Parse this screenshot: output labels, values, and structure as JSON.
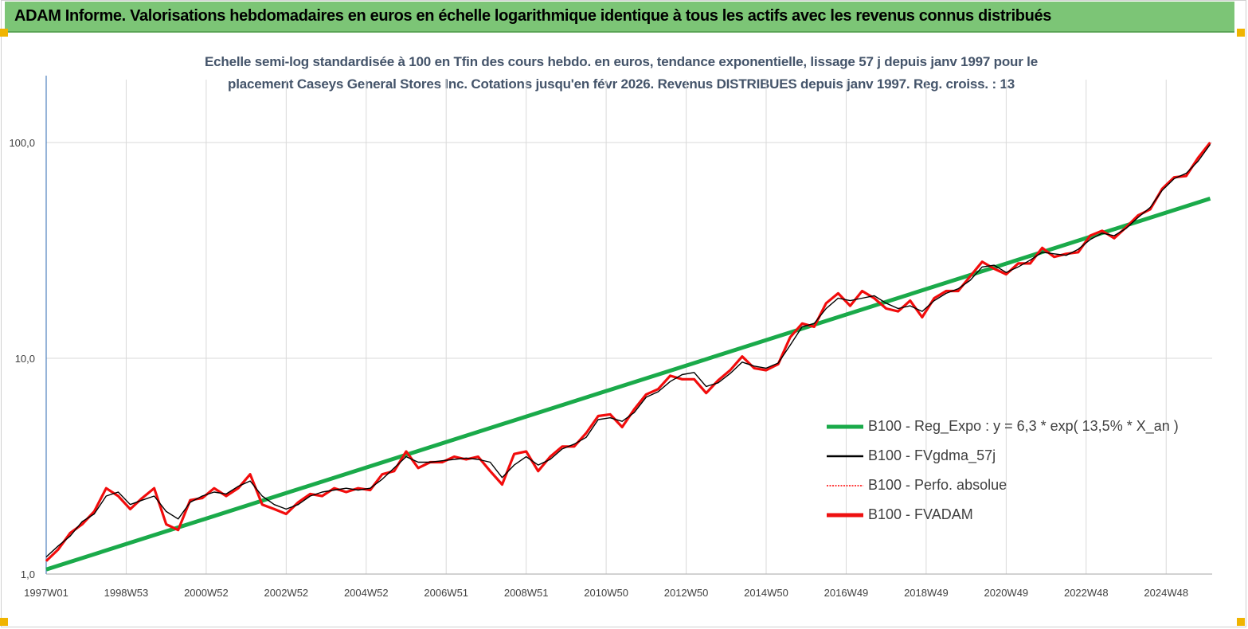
{
  "header": {
    "title": "ADAM Informe. Valorisations hebdomadaires en euros en échelle logarithmique identique à tous les actifs avec les revenus connus distribués"
  },
  "chart_data": {
    "type": "line",
    "title_line1": "Echelle semi-log standardisée à 100 en Tfin des cours hebdo. en euros, tendance exponentielle, lissage 57 j depuis janv 1997 pour le",
    "title_line2": "placement Caseys General Stores Inc.  Cotations jusqu'en févr 2026. Revenus DISTRIBUES depuis janv 1997. Reg. croiss. : 13",
    "xlabel": "",
    "ylabel": "",
    "y_scale": "log",
    "ylim": [
      1,
      200
    ],
    "xlim": [
      1997.0,
      2026.15
    ],
    "y_ticks": [
      {
        "value": 1,
        "label": "1,0"
      },
      {
        "value": 10,
        "label": "10,0"
      },
      {
        "value": 100,
        "label": "100,0"
      }
    ],
    "x_ticks": [
      {
        "value": 1997.0,
        "label": "1997W01"
      },
      {
        "value": 1999.0,
        "label": "1998W53"
      },
      {
        "value": 2001.0,
        "label": "2000W52"
      },
      {
        "value": 2003.0,
        "label": "2002W52"
      },
      {
        "value": 2005.0,
        "label": "2004W52"
      },
      {
        "value": 2007.0,
        "label": "2006W51"
      },
      {
        "value": 2009.0,
        "label": "2008W51"
      },
      {
        "value": 2011.0,
        "label": "2010W50"
      },
      {
        "value": 2013.0,
        "label": "2012W50"
      },
      {
        "value": 2015.0,
        "label": "2014W50"
      },
      {
        "value": 2017.0,
        "label": "2016W49"
      },
      {
        "value": 2019.0,
        "label": "2018W49"
      },
      {
        "value": 2021.0,
        "label": "2020W49"
      },
      {
        "value": 2023.0,
        "label": "2022W48"
      },
      {
        "value": 2025.0,
        "label": "2024W48"
      }
    ],
    "grid": "vertical",
    "legend_position": "right",
    "colors": {
      "regression": "#1aaa4a",
      "smoothed": "#000000",
      "absolute": "#ff0000",
      "fvadam": "#ee1111",
      "axis": "#4f81bd",
      "grid": "#d9d9d9"
    },
    "series": [
      {
        "name": "B100 - Reg_Expo : y = 6,3 * exp( 13,5% *  X_an )",
        "style": "solid-thick",
        "x": [
          1997.0,
          2026.1
        ],
        "y": [
          1.05,
          55.0
        ]
      },
      {
        "name": "B100 - FVgdma_57j",
        "style": "solid-thin",
        "x": [
          1997.0,
          1997.3,
          1997.6,
          1997.9,
          1998.2,
          1998.5,
          1998.8,
          1999.1,
          1999.4,
          1999.7,
          2000.0,
          2000.3,
          2000.6,
          2000.9,
          2001.2,
          2001.5,
          2001.8,
          2002.1,
          2002.4,
          2002.7,
          2003.0,
          2003.3,
          2003.6,
          2003.9,
          2004.2,
          2004.5,
          2004.8,
          2005.1,
          2005.4,
          2005.7,
          2006.0,
          2006.3,
          2006.6,
          2006.9,
          2007.2,
          2007.5,
          2007.8,
          2008.1,
          2008.4,
          2008.7,
          2009.0,
          2009.3,
          2009.6,
          2009.9,
          2010.2,
          2010.5,
          2010.8,
          2011.1,
          2011.4,
          2011.7,
          2012.0,
          2012.3,
          2012.6,
          2012.9,
          2013.2,
          2013.5,
          2013.8,
          2014.1,
          2014.4,
          2014.7,
          2015.0,
          2015.3,
          2015.6,
          2015.9,
          2016.2,
          2016.5,
          2016.8,
          2017.1,
          2017.4,
          2017.7,
          2018.0,
          2018.3,
          2018.6,
          2018.9,
          2019.2,
          2019.5,
          2019.8,
          2020.1,
          2020.4,
          2020.7,
          2021.0,
          2021.3,
          2021.6,
          2021.9,
          2022.2,
          2022.5,
          2022.8,
          2023.1,
          2023.4,
          2023.7,
          2024.0,
          2024.3,
          2024.6,
          2024.9,
          2025.2,
          2025.5,
          2025.8,
          2026.1
        ],
        "y": [
          1.2,
          1.35,
          1.5,
          1.75,
          1.9,
          2.3,
          2.4,
          2.1,
          2.2,
          2.3,
          1.95,
          1.8,
          2.15,
          2.3,
          2.4,
          2.35,
          2.55,
          2.7,
          2.3,
          2.1,
          2.0,
          2.1,
          2.3,
          2.4,
          2.45,
          2.5,
          2.45,
          2.5,
          2.75,
          3.1,
          3.5,
          3.3,
          3.3,
          3.35,
          3.4,
          3.45,
          3.4,
          3.3,
          2.8,
          3.2,
          3.5,
          3.2,
          3.4,
          3.8,
          4.0,
          4.3,
          5.2,
          5.3,
          5.1,
          5.6,
          6.6,
          7.0,
          7.8,
          8.4,
          8.6,
          7.4,
          7.7,
          8.5,
          9.6,
          9.2,
          9.0,
          9.5,
          11.5,
          14.0,
          14.5,
          17.0,
          19.0,
          18.5,
          19.0,
          19.5,
          18.0,
          17.0,
          17.5,
          16.5,
          18.5,
          20.0,
          21.0,
          23.0,
          26.5,
          27.0,
          25.0,
          26.5,
          28.5,
          31.0,
          30.5,
          30.0,
          32.0,
          35.5,
          38.0,
          37.0,
          40.0,
          45.0,
          50.0,
          60.0,
          68.0,
          72.0,
          82.0,
          98.0
        ]
      },
      {
        "name": "B100 - Perfo. absolue",
        "style": "dotted"
      },
      {
        "name": "B100 - FVADAM",
        "style": "solid-thick",
        "x": [
          1997.0,
          1997.3,
          1997.6,
          1997.9,
          1998.2,
          1998.5,
          1998.8,
          1999.1,
          1999.4,
          1999.7,
          2000.0,
          2000.3,
          2000.6,
          2000.9,
          2001.2,
          2001.5,
          2001.8,
          2002.1,
          2002.4,
          2002.7,
          2003.0,
          2003.3,
          2003.6,
          2003.9,
          2004.2,
          2004.5,
          2004.8,
          2005.1,
          2005.4,
          2005.7,
          2006.0,
          2006.3,
          2006.6,
          2006.9,
          2007.2,
          2007.5,
          2007.8,
          2008.1,
          2008.4,
          2008.7,
          2009.0,
          2009.3,
          2009.6,
          2009.9,
          2010.2,
          2010.5,
          2010.8,
          2011.1,
          2011.4,
          2011.7,
          2012.0,
          2012.3,
          2012.6,
          2012.9,
          2013.2,
          2013.5,
          2013.8,
          2014.1,
          2014.4,
          2014.7,
          2015.0,
          2015.3,
          2015.6,
          2015.9,
          2016.2,
          2016.5,
          2016.8,
          2017.1,
          2017.4,
          2017.7,
          2018.0,
          2018.3,
          2018.6,
          2018.9,
          2019.2,
          2019.5,
          2019.8,
          2020.1,
          2020.4,
          2020.7,
          2021.0,
          2021.3,
          2021.6,
          2021.9,
          2022.2,
          2022.5,
          2022.8,
          2023.1,
          2023.4,
          2023.7,
          2024.0,
          2024.3,
          2024.6,
          2024.9,
          2025.2,
          2025.5,
          2025.8,
          2026.1
        ],
        "y": [
          1.15,
          1.3,
          1.55,
          1.7,
          1.95,
          2.5,
          2.3,
          2.0,
          2.25,
          2.5,
          1.7,
          1.6,
          2.2,
          2.25,
          2.5,
          2.3,
          2.5,
          2.9,
          2.1,
          2.0,
          1.9,
          2.15,
          2.35,
          2.3,
          2.5,
          2.4,
          2.5,
          2.45,
          2.9,
          3.0,
          3.7,
          3.1,
          3.3,
          3.3,
          3.5,
          3.4,
          3.5,
          3.0,
          2.6,
          3.6,
          3.7,
          3.0,
          3.5,
          3.9,
          3.9,
          4.5,
          5.4,
          5.5,
          4.8,
          5.8,
          6.8,
          7.2,
          8.3,
          8.0,
          8.0,
          6.9,
          7.9,
          8.8,
          10.2,
          9.0,
          8.8,
          9.4,
          12.5,
          14.5,
          14.0,
          18.0,
          20.0,
          17.5,
          20.5,
          19.0,
          17.0,
          16.5,
          18.5,
          15.5,
          19.0,
          20.5,
          20.5,
          24.0,
          28.0,
          26.0,
          24.5,
          27.5,
          27.5,
          32.5,
          29.5,
          30.5,
          31.0,
          37.0,
          39.0,
          36.0,
          40.5,
          46.0,
          49.0,
          61.0,
          69.0,
          70.0,
          85.0,
          100.0
        ]
      }
    ]
  },
  "legend": {
    "items": [
      {
        "label": "B100 - Reg_Expo : y = 6,3 * exp( 13,5% *  X_an )",
        "color": "#1aaa4a"
      },
      {
        "label": "B100 - FVgdma_57j",
        "color": "#000000"
      },
      {
        "label": "B100 - Perfo. absolue",
        "color": "#ff0000"
      },
      {
        "label": "B100 - FVADAM",
        "color": "#ee1111"
      }
    ]
  }
}
